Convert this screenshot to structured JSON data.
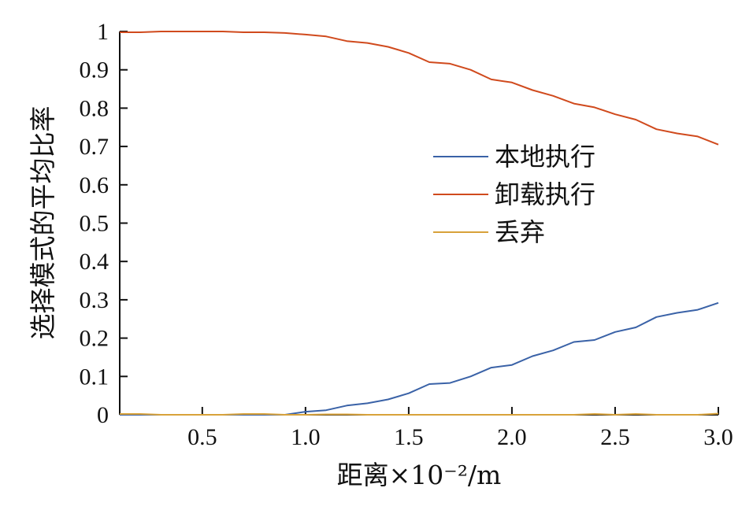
{
  "chart_data": {
    "type": "line",
    "xlabel": "距离×10⁻²/m",
    "ylabel": "选择模式的平均比率",
    "xlim": [
      0.1,
      3.0
    ],
    "ylim": [
      0,
      1
    ],
    "x_ticks": [
      0.5,
      1.0,
      1.5,
      2.0,
      2.5,
      3.0
    ],
    "x_tick_labels": [
      "0.5",
      "1.0",
      "1.5",
      "2.0",
      "2.5",
      "3.0"
    ],
    "y_ticks": [
      0,
      0.1,
      0.2,
      0.3,
      0.4,
      0.5,
      0.6,
      0.7,
      0.8,
      0.9,
      1
    ],
    "y_tick_labels": [
      "0",
      "0.1",
      "0.2",
      "0.3",
      "0.4",
      "0.5",
      "0.6",
      "0.7",
      "0.8",
      "0.9",
      "1"
    ],
    "grid": false,
    "legend_position": "middle-right",
    "x": [
      0.1,
      0.2,
      0.3,
      0.4,
      0.5,
      0.6,
      0.7,
      0.8,
      0.9,
      1.0,
      1.1,
      1.2,
      1.3,
      1.4,
      1.5,
      1.6,
      1.7,
      1.8,
      1.9,
      2.0,
      2.1,
      2.2,
      2.3,
      2.4,
      2.5,
      2.6,
      2.7,
      2.8,
      2.9,
      3.0
    ],
    "series": [
      {
        "name": "本地执行",
        "color": "#3a62a7",
        "values": [
          0,
          0,
          0,
          0,
          0,
          0,
          0,
          0,
          0,
          0.008,
          0.012,
          0.024,
          0.03,
          0.04,
          0.056,
          0.08,
          0.083,
          0.1,
          0.123,
          0.13,
          0.153,
          0.168,
          0.19,
          0.195,
          0.216,
          0.228,
          0.255,
          0.266,
          0.274,
          0.292
        ]
      },
      {
        "name": "卸载执行",
        "color": "#d04a1d",
        "values": [
          0.998,
          0.998,
          1.0,
          1.0,
          1.0,
          1.0,
          0.998,
          0.998,
          0.996,
          0.992,
          0.987,
          0.975,
          0.97,
          0.96,
          0.944,
          0.92,
          0.916,
          0.9,
          0.875,
          0.867,
          0.847,
          0.832,
          0.812,
          0.802,
          0.784,
          0.77,
          0.745,
          0.734,
          0.726,
          0.705
        ]
      },
      {
        "name": "丢弃",
        "color": "#d8a23a",
        "values": [
          0.002,
          0.002,
          0,
          0,
          0,
          0,
          0.002,
          0.002,
          0,
          0,
          0.001,
          0.001,
          0,
          0,
          0,
          0,
          0,
          0,
          0,
          0,
          0,
          0,
          0,
          0.002,
          0,
          0.002,
          0,
          0,
          0,
          0.003
        ]
      }
    ]
  }
}
